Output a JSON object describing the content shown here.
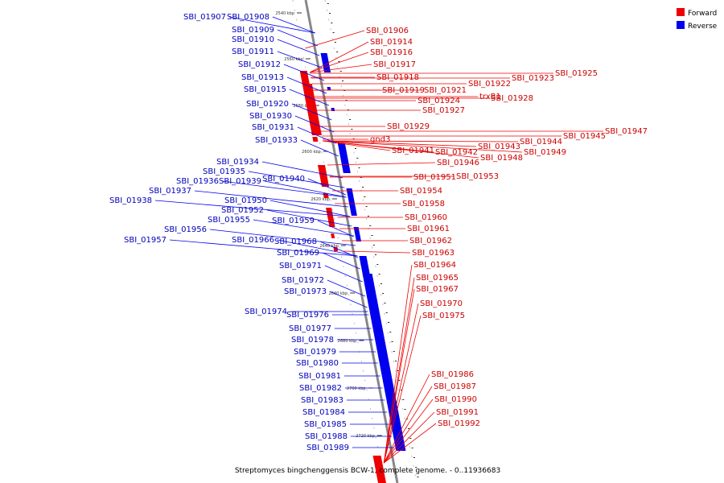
{
  "caption": "Streptomyces bingchenggensis BCW-1, complete genome. - 0..11936683",
  "legend": [
    {
      "label": "Forward",
      "color": "#ee0000"
    },
    {
      "label": "Reverse",
      "color": "#0000ee"
    }
  ],
  "scale_ticks": [
    "2540 kbp",
    "2560 kbp",
    "2580 kbp",
    "2600 kbp",
    "2620 kbp",
    "2640 kbp",
    "2660 kbp",
    "2680 kbp",
    "2700 kbp",
    "2720 kbp"
  ],
  "forward_labels": [
    "SBI_01906",
    "SBI_01914",
    "SBI_01916",
    "SBI_01917",
    "SBI_01918",
    "SBI_01919",
    "SBI_01921",
    "SBI_01922",
    "SBI_01923",
    "SBI_01925",
    "SBI_01924",
    "trxB1",
    "SBI_01928",
    "SBI_01927",
    "SBI_01929",
    "gnd3",
    "SBI_01941",
    "SBI_01942",
    "SBI_01943",
    "SBI_01944",
    "SBI_01945",
    "SBI_01947",
    "SBI_01946",
    "SBI_01948",
    "SBI_01949",
    "SBI_01951",
    "SBI_01953",
    "SBI_01954",
    "SBI_01958",
    "SBI_01960",
    "SBI_01961",
    "SBI_01962",
    "SBI_01963",
    "SBI_01964",
    "SBI_01965",
    "SBI_01967",
    "SBI_01970",
    "SBI_01975",
    "SBI_01986",
    "SBI_01987",
    "SBI_01990",
    "SBI_01991",
    "SBI_01992"
  ],
  "reverse_labels": [
    "SBI_01907",
    "SBI_01908",
    "SBI_01909",
    "SBI_01910",
    "SBI_01911",
    "SBI_01912",
    "SBI_01913",
    "SBI_01915",
    "SBI_01920",
    "SBI_01930",
    "SBI_01931",
    "SBI_01933",
    "SBI_01934",
    "SBI_01935",
    "SBI_01936",
    "SBI_01939",
    "SBI_01940",
    "SBI_01937",
    "SBI_01938",
    "SBI_01950",
    "SBI_01952",
    "SBI_01955",
    "SBI_01959",
    "SBI_01956",
    "SBI_01957",
    "SBI_01966",
    "SBI_01968",
    "SBI_01969",
    "SBI_01971",
    "SBI_01972",
    "SBI_01973",
    "SBI_01974",
    "SBI_01976",
    "SBI_01977",
    "SBI_01978",
    "SBI_01979",
    "SBI_01980",
    "SBI_01981",
    "SBI_01982",
    "SBI_01983",
    "SBI_01984",
    "SBI_01985",
    "SBI_01988",
    "SBI_01989"
  ]
}
